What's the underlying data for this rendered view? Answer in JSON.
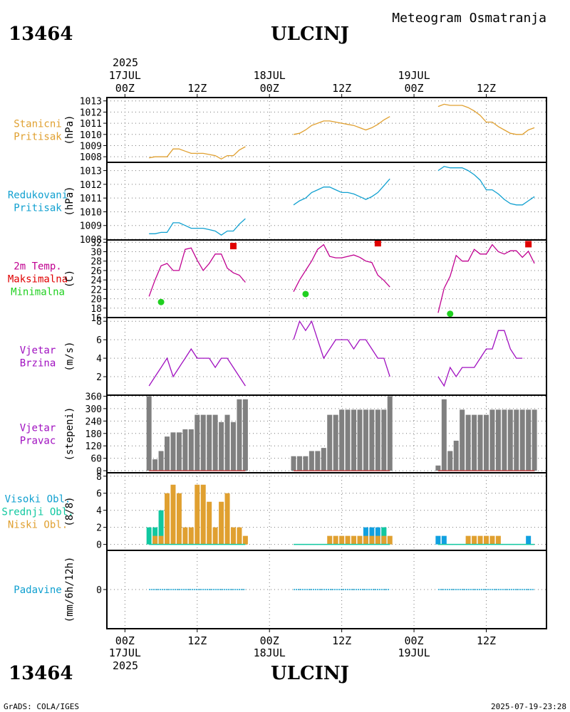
{
  "header": {
    "station_id": "13464",
    "station_name": "ULCINJ",
    "product": "Meteogram Osmatranja"
  },
  "footer": {
    "credit": "GrADS: COLA/IGES",
    "timestamp": "2025-07-19-23:28"
  },
  "time_axis": {
    "year": "2025",
    "hour_labels": [
      "00Z",
      "12Z",
      "00Z",
      "12Z",
      "00Z",
      "12Z"
    ],
    "hour_positions_h": [
      0,
      12,
      24,
      36,
      48,
      60
    ],
    "day_labels": [
      "17JUL",
      "18JUL",
      "19JUL"
    ],
    "day_positions_h": [
      0,
      24,
      48
    ],
    "range_h": [
      -3,
      70
    ]
  },
  "colors": {
    "orange": "#e0a030",
    "cyan": "#10a0d0",
    "magenta": "#c00090",
    "red": "#e00000",
    "green": "#20d020",
    "purple": "#a010c0",
    "grey": "#808080",
    "teal": "#10c8a0",
    "blue": "#10a0e0"
  },
  "chart_data": [
    {
      "id": "station_pressure",
      "type": "line",
      "labels": [
        {
          "text": "Stanicni",
          "color": "orange"
        },
        {
          "text": "Pritisak",
          "color": "orange"
        }
      ],
      "ylabel": "(hPa)",
      "ylim": [
        1007.5,
        1013.3
      ],
      "yticks": [
        1008,
        1009,
        1010,
        1011,
        1012,
        1013
      ],
      "series": [
        {
          "name": "Stanicni Pritisak",
          "color": "orange",
          "segments": [
            {
              "x": [
                4,
                5,
                6,
                7,
                8,
                9,
                10,
                11,
                12,
                13,
                14,
                15,
                16,
                17,
                18,
                19,
                20
              ],
              "y": [
                1007.9,
                1008,
                1008,
                1008,
                1008.7,
                1008.7,
                1008.5,
                1008.3,
                1008.3,
                1008.3,
                1008.2,
                1008.1,
                1007.8,
                1008.1,
                1008.1,
                1008.6,
                1008.9
              ]
            },
            {
              "x": [
                28,
                29,
                30,
                31,
                32,
                33,
                34,
                35,
                36,
                37,
                38,
                39,
                40,
                41,
                42,
                43,
                44
              ],
              "y": [
                1010,
                1010.1,
                1010.4,
                1010.8,
                1011,
                1011.2,
                1011.2,
                1011.1,
                1011,
                1010.9,
                1010.8,
                1010.6,
                1010.4,
                1010.6,
                1010.9,
                1011.3,
                1011.6
              ]
            },
            {
              "x": [
                52,
                53,
                54,
                55,
                56,
                57,
                58,
                59,
                60,
                61,
                62,
                63,
                64,
                65,
                66,
                67,
                68
              ],
              "y": [
                1012.5,
                1012.7,
                1012.6,
                1012.6,
                1012.6,
                1012.4,
                1012.1,
                1011.7,
                1011.1,
                1011.1,
                1010.7,
                1010.4,
                1010.1,
                1010,
                1010,
                1010.4,
                1010.6
              ]
            }
          ]
        }
      ]
    },
    {
      "id": "reduced_pressure",
      "type": "line",
      "labels": [
        {
          "text": "Redukovani",
          "color": "cyan"
        },
        {
          "text": "Pritisak",
          "color": "cyan"
        }
      ],
      "ylabel": "(hPa)",
      "ylim": [
        1007.95,
        1013.6
      ],
      "yticks": [
        1008,
        1009,
        1010,
        1011,
        1012,
        1013
      ],
      "series": [
        {
          "name": "Redukovani Pritisak",
          "color": "cyan",
          "segments": [
            {
              "x": [
                4,
                5,
                6,
                7,
                8,
                9,
                10,
                11,
                12,
                13,
                14,
                15,
                16,
                17,
                18,
                19,
                20
              ],
              "y": [
                1008.4,
                1008.4,
                1008.5,
                1008.5,
                1009.2,
                1009.2,
                1009,
                1008.8,
                1008.8,
                1008.8,
                1008.7,
                1008.6,
                1008.3,
                1008.6,
                1008.6,
                1009.1,
                1009.5
              ]
            },
            {
              "x": [
                28,
                29,
                30,
                31,
                32,
                33,
                34,
                35,
                36,
                37,
                38,
                39,
                40,
                41,
                42,
                43,
                44
              ],
              "y": [
                1010.5,
                1010.8,
                1011,
                1011.4,
                1011.6,
                1011.8,
                1011.8,
                1011.6,
                1011.4,
                1011.4,
                1011.3,
                1011.1,
                1010.9,
                1011.1,
                1011.4,
                1011.9,
                1012.4
              ]
            },
            {
              "x": [
                52,
                53,
                54,
                55,
                56,
                57,
                58,
                59,
                60,
                61,
                62,
                63,
                64,
                65,
                66,
                67,
                68
              ],
              "y": [
                1013,
                1013.3,
                1013.2,
                1013.2,
                1013.2,
                1013,
                1012.7,
                1012.3,
                1011.6,
                1011.6,
                1011.3,
                1010.9,
                1010.6,
                1010.5,
                1010.5,
                1010.8,
                1011.1
              ]
            }
          ]
        }
      ]
    },
    {
      "id": "temperature",
      "type": "line",
      "labels": [
        {
          "text": "2m Temp.",
          "color": "magenta"
        },
        {
          "text": "Maksimalna",
          "color": "red"
        },
        {
          "text": "Minimalna",
          "color": "green"
        }
      ],
      "ylabel": "(C)",
      "ylim": [
        16,
        32.5
      ],
      "yticks": [
        16,
        18,
        20,
        22,
        24,
        26,
        28,
        30,
        32
      ],
      "series": [
        {
          "name": "2m Temp.",
          "color": "magenta",
          "segments": [
            {
              "x": [
                4,
                5,
                6,
                7,
                8,
                9,
                10,
                11,
                12,
                13,
                14,
                15,
                16,
                17,
                18,
                19,
                20
              ],
              "y": [
                20.5,
                24,
                27,
                27.5,
                26,
                26,
                30.5,
                30.8,
                28.2,
                26,
                27.5,
                29.5,
                29.5,
                26.5,
                25.5,
                25,
                23.5
              ]
            },
            {
              "x": [
                28,
                29,
                30,
                31,
                32,
                33,
                34,
                35,
                36,
                37,
                38,
                39,
                40,
                41,
                42,
                43,
                44
              ],
              "y": [
                21.5,
                24,
                26,
                28,
                30.5,
                31.5,
                29,
                28.7,
                28.7,
                29,
                29.3,
                28.8,
                28,
                27.7,
                25,
                23.9,
                22.5
              ]
            },
            {
              "x": [
                52,
                53,
                54,
                55,
                56,
                57,
                58,
                59,
                60,
                61,
                62,
                63,
                64,
                65,
                66,
                67,
                68
              ],
              "y": [
                17,
                22.2,
                24.8,
                29.2,
                28,
                28,
                30.5,
                29.5,
                29.5,
                31.5,
                30,
                29.5,
                30.2,
                30.2,
                28.8,
                30.1,
                27.5
              ]
            }
          ]
        }
      ],
      "points": [
        {
          "name": "Maksimalna",
          "color": "red",
          "shape": "square",
          "x": [
            18,
            42,
            67
          ],
          "y": [
            31.2,
            31.8,
            31.6
          ]
        },
        {
          "name": "Minimalna",
          "color": "green",
          "shape": "circle",
          "x": [
            6,
            30,
            54
          ],
          "y": [
            19.3,
            21,
            16.8
          ]
        }
      ]
    },
    {
      "id": "wind_speed",
      "type": "line",
      "labels": [
        {
          "text": "Vjetar",
          "color": "purple"
        },
        {
          "text": "Brzina",
          "color": "purple"
        }
      ],
      "ylabel": "(m/s)",
      "ylim": [
        0,
        8.4
      ],
      "yticks": [
        2,
        4,
        6,
        8
      ],
      "series": [
        {
          "name": "Vjetar Brzina",
          "color": "purple",
          "segments": [
            {
              "x": [
                4,
                5,
                6,
                7,
                8,
                9,
                10,
                11,
                12,
                13,
                14,
                15,
                16,
                17,
                18,
                19,
                20
              ],
              "y": [
                1,
                2,
                3,
                4,
                2,
                3,
                4,
                5,
                4,
                4,
                4,
                3,
                4,
                4,
                3,
                2,
                1
              ]
            },
            {
              "x": [
                28,
                29,
                30,
                31,
                32,
                33,
                34,
                35,
                36,
                37,
                38,
                39,
                40,
                41,
                42,
                43,
                44
              ],
              "y": [
                6,
                8,
                7,
                8,
                6,
                4,
                5,
                6,
                6,
                6,
                5,
                6,
                6,
                5,
                4,
                4,
                2
              ]
            },
            {
              "x": [
                52,
                53,
                54,
                55,
                56,
                57,
                58,
                59,
                60,
                61,
                62,
                63,
                64,
                65,
                66,
                67,
                68
              ],
              "y": [
                2,
                1,
                3,
                2,
                3,
                3,
                3,
                4,
                5,
                5,
                7,
                7,
                5,
                4,
                4,
                null,
                null
              ]
            }
          ]
        }
      ]
    },
    {
      "id": "wind_direction",
      "type": "bar",
      "labels": [
        {
          "text": "Vjetar",
          "color": "purple"
        },
        {
          "text": "Pravac",
          "color": "purple"
        }
      ],
      "ylabel": "(stepeni)",
      "ylim": [
        -10,
        365
      ],
      "yticks": [
        0,
        60,
        120,
        180,
        240,
        300,
        360
      ],
      "calm_line": true,
      "series": [
        {
          "name": "Vjetar Pravac",
          "color": "grey",
          "x": [
            4,
            5,
            6,
            7,
            8,
            9,
            10,
            11,
            12,
            13,
            14,
            15,
            16,
            17,
            18,
            19,
            20,
            28,
            29,
            30,
            31,
            32,
            33,
            34,
            35,
            36,
            37,
            38,
            39,
            40,
            41,
            42,
            43,
            44,
            52,
            53,
            54,
            55,
            56,
            57,
            58,
            59,
            60,
            61,
            62,
            63,
            64,
            65,
            66,
            67,
            68
          ],
          "values": [
            360,
            55,
            95,
            165,
            185,
            185,
            200,
            200,
            270,
            270,
            270,
            270,
            235,
            270,
            235,
            345,
            345,
            70,
            70,
            70,
            95,
            95,
            110,
            270,
            270,
            295,
            295,
            295,
            295,
            295,
            295,
            295,
            295,
            360,
            25,
            345,
            95,
            145,
            295,
            270,
            270,
            270,
            270,
            295,
            295,
            295,
            295,
            295,
            295,
            295,
            295
          ]
        }
      ],
      "calm_segments": [
        [
          4,
          20
        ],
        [
          28,
          44
        ],
        [
          52,
          68
        ]
      ]
    },
    {
      "id": "cloud_cover",
      "type": "bar",
      "labels": [
        {
          "text": "Visoki Obl.",
          "color": "cyan"
        },
        {
          "text": "Srednji Obl.",
          "color": "teal"
        },
        {
          "text": "Niski Obl.",
          "color": "orange"
        }
      ],
      "ylabel": "(8/8)",
      "ylim": [
        -0.7,
        8.4
      ],
      "yticks": [
        0,
        2,
        4,
        6,
        8
      ],
      "series": [
        {
          "name": "Visoki Obl.",
          "color": "blue",
          "x": [
            40,
            41,
            42,
            43,
            52,
            53,
            67
          ],
          "values": [
            2,
            2,
            2,
            2,
            1,
            1,
            1
          ]
        },
        {
          "name": "Srednji Obl.",
          "color": "teal",
          "x": [
            4,
            5,
            6,
            43
          ],
          "values": [
            2,
            2,
            4,
            2
          ]
        },
        {
          "name": "Niski Obl.",
          "color": "orange",
          "x": [
            5,
            6,
            7,
            8,
            9,
            10,
            11,
            12,
            13,
            14,
            15,
            16,
            17,
            18,
            19,
            20,
            34,
            35,
            36,
            37,
            38,
            39,
            40,
            41,
            42,
            43,
            44,
            57,
            58,
            59,
            60,
            61,
            62
          ],
          "values": [
            1,
            1,
            6,
            7,
            6,
            2,
            2,
            7,
            7,
            5,
            2,
            5,
            6,
            2,
            2,
            1,
            1,
            1,
            1,
            1,
            1,
            1,
            1,
            1,
            1,
            1,
            1,
            1,
            1,
            1,
            1,
            1,
            1
          ]
        }
      ],
      "zero_segments": [
        [
          4,
          20
        ],
        [
          28,
          44
        ],
        [
          52,
          68
        ]
      ]
    },
    {
      "id": "precipitation",
      "type": "bar",
      "labels": [
        {
          "text": "Padavine",
          "color": "cyan"
        }
      ],
      "ylabel": "(mm/6h/12h)",
      "ylim": [
        -1,
        1
      ],
      "yticks": [
        0
      ],
      "series": [
        {
          "name": "Padavine",
          "color": "cyan",
          "x": [],
          "values": []
        }
      ],
      "zero_segments": [
        [
          4,
          20
        ],
        [
          28,
          44
        ],
        [
          52,
          68
        ]
      ]
    }
  ]
}
